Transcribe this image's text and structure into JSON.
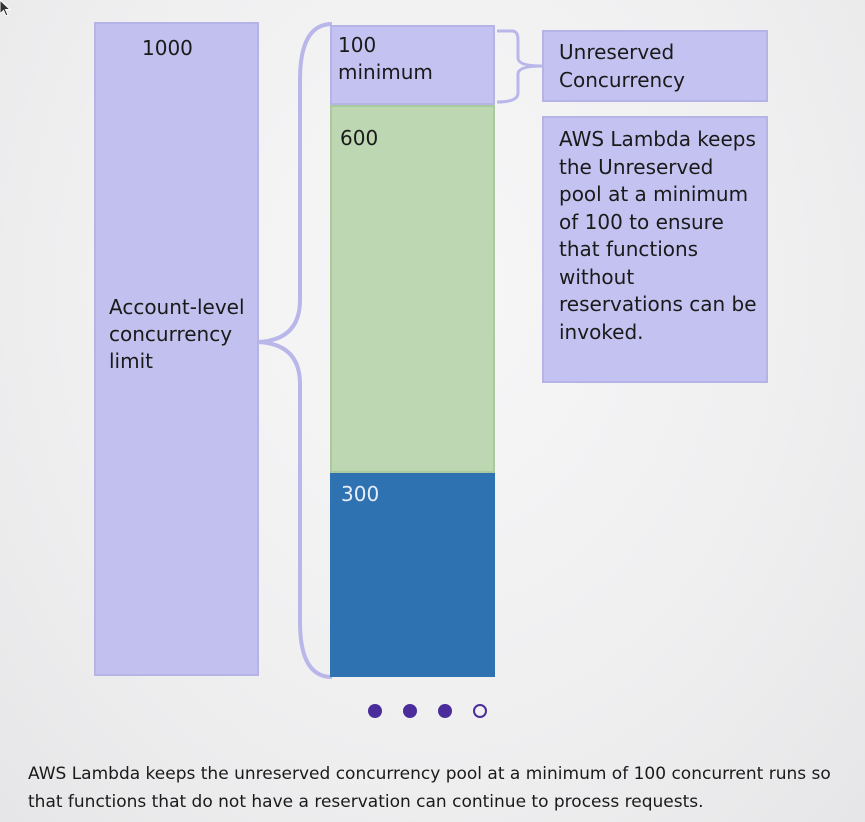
{
  "diagram": {
    "account_total": "1000",
    "account_label": "Account-level concurrency limit",
    "segments": {
      "unreserved": {
        "value": "100",
        "note": "minimum"
      },
      "reserved_a": {
        "value": "600"
      },
      "reserved_b": {
        "value": "300"
      }
    },
    "callout_title": "Unreserved Concurrency",
    "callout_description": "AWS Lambda keeps the Unreserved pool at a minimum of 100 to ensure that functions without reservations can be invoked."
  },
  "carousel": {
    "total_slides": 4,
    "active_slide": 4
  },
  "caption": "AWS Lambda keeps the unreserved concurrency pool at a minimum of 100 concurrent runs so that functions that do not have a reservation can continue to process requests.",
  "colors": {
    "lavender": "#c4c2f0",
    "green": "#bcd7b1",
    "blue": "#2f72b2",
    "dot": "#4a2c9a"
  }
}
